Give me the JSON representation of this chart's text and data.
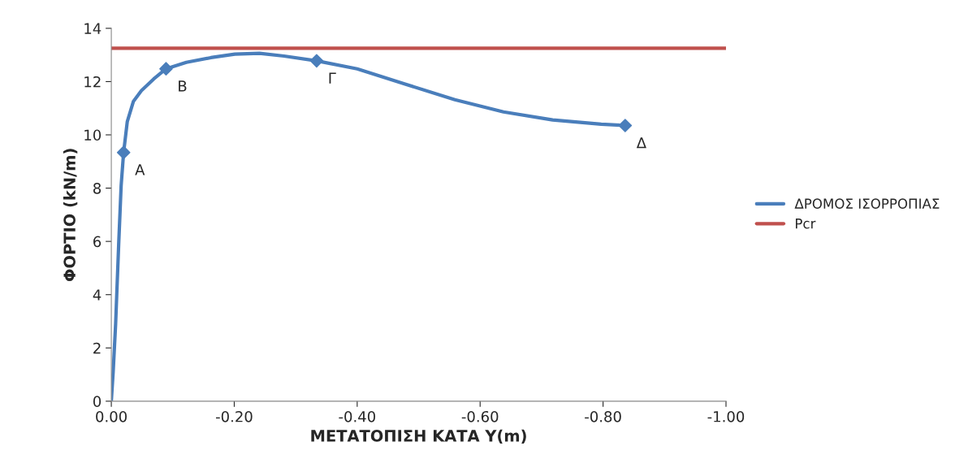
{
  "chart_data": {
    "type": "line",
    "xlabel": "ΜΕΤΑΤΟΠΙΣΗ ΚΑΤΑ Y(m)",
    "ylabel": "ΦΟΡΤΙΟ (kN/m)",
    "series": [
      {
        "name": "ΔΡΟΜΟΣ ΙΣΟΡΡΟΠΙΑΣ",
        "color": "#4a7ebb",
        "x": [
          0,
          -0.003,
          -0.007,
          -0.012,
          -0.016,
          -0.02,
          -0.026,
          -0.036,
          -0.049,
          -0.069,
          -0.089,
          -0.122,
          -0.162,
          -0.201,
          -0.241,
          -0.281,
          -0.334,
          -0.4,
          -0.479,
          -0.559,
          -0.638,
          -0.718,
          -0.797,
          -0.836
        ],
        "values": [
          0,
          1.1,
          2.9,
          5.9,
          8.1,
          9.34,
          10.5,
          11.26,
          11.66,
          12.1,
          12.48,
          12.72,
          12.9,
          13.03,
          13.06,
          12.96,
          12.78,
          12.48,
          11.9,
          11.32,
          10.86,
          10.56,
          10.4,
          10.35
        ]
      },
      {
        "color": "#4a7ebb",
        "type": "scatter",
        "marker": "diamond",
        "x": [
          -0.02,
          -0.089,
          -0.334,
          -0.836
        ],
        "values": [
          9.34,
          12.48,
          12.78,
          10.35
        ]
      }
    ],
    "ref_lines": [
      {
        "axis": "y",
        "value": 13.25,
        "label": "Pcr",
        "color": "#c0504d"
      }
    ],
    "annotations": [
      {
        "text": "Α",
        "x": -0.02,
        "y": 9.34
      },
      {
        "text": "Β",
        "x": -0.089,
        "y": 12.48
      },
      {
        "text": "Γ",
        "x": -0.334,
        "y": 12.78
      },
      {
        "text": "Δ",
        "x": -0.836,
        "y": 10.35
      }
    ],
    "xlim": [
      0,
      -1
    ],
    "xticks": [
      {
        "value": 0,
        "label": "0.00"
      },
      {
        "value": -0.2,
        "label": "-0.20"
      },
      {
        "value": -0.4,
        "label": "-0.40"
      },
      {
        "value": -0.6,
        "label": "-0.60"
      },
      {
        "value": -0.8,
        "label": "-0.80"
      },
      {
        "value": -1,
        "label": "-1.00"
      }
    ],
    "ylim": [
      0,
      14
    ],
    "yticks": [
      0,
      2,
      4,
      6,
      8,
      10,
      12,
      14
    ],
    "grid": false,
    "legend": "right"
  }
}
